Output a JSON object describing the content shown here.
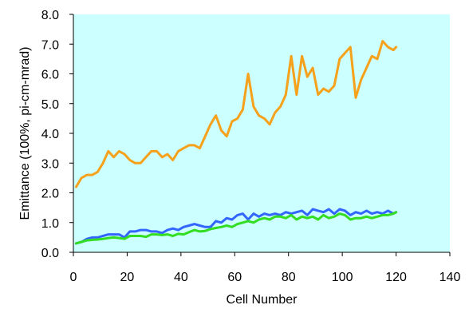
{
  "chart_data": {
    "type": "line",
    "title": "",
    "xlabel": "Cell Number",
    "ylabel": "Emittance (100%, pi-cm-mrad)",
    "xlim": [
      0,
      140
    ],
    "ylim": [
      0.0,
      8.0
    ],
    "xticks": [
      "0",
      "20",
      "40",
      "60",
      "80",
      "100",
      "120",
      "140"
    ],
    "yticks": [
      "0.0",
      "1.0",
      "2.0",
      "3.0",
      "4.0",
      "5.0",
      "6.0",
      "7.0",
      "8.0"
    ],
    "grid": false,
    "legend": "none",
    "plot_background": "#ccffff",
    "series": [
      {
        "color": "#f5a11c",
        "x": [
          1,
          3,
          5,
          7,
          9,
          11,
          13,
          15,
          17,
          19,
          21,
          23,
          25,
          27,
          29,
          31,
          33,
          35,
          37,
          39,
          41,
          43,
          45,
          47,
          49,
          51,
          53,
          55,
          57,
          59,
          61,
          63,
          65,
          67,
          69,
          71,
          73,
          75,
          77,
          79,
          81,
          83,
          85,
          87,
          89,
          91,
          93,
          95,
          97,
          99,
          101,
          103,
          105,
          107,
          109,
          111,
          113,
          115,
          117,
          119,
          120
        ],
        "values": [
          2.2,
          2.5,
          2.6,
          2.6,
          2.7,
          3.0,
          3.4,
          3.2,
          3.4,
          3.3,
          3.1,
          3.0,
          3.0,
          3.2,
          3.4,
          3.4,
          3.2,
          3.3,
          3.1,
          3.4,
          3.5,
          3.6,
          3.6,
          3.5,
          3.9,
          4.3,
          4.6,
          4.1,
          3.9,
          4.4,
          4.5,
          4.8,
          6.0,
          4.9,
          4.6,
          4.5,
          4.3,
          4.7,
          4.9,
          5.3,
          6.6,
          5.3,
          6.6,
          5.9,
          6.2,
          5.3,
          5.5,
          5.4,
          5.6,
          6.5,
          6.7,
          6.9,
          5.2,
          5.8,
          6.2,
          6.6,
          6.5,
          7.1,
          6.9,
          6.8,
          6.9
        ]
      },
      {
        "color": "#3366ff",
        "x": [
          1,
          3,
          5,
          7,
          9,
          11,
          13,
          15,
          17,
          19,
          21,
          23,
          25,
          27,
          29,
          31,
          33,
          35,
          37,
          39,
          41,
          43,
          45,
          47,
          49,
          51,
          53,
          55,
          57,
          59,
          61,
          63,
          65,
          67,
          69,
          71,
          73,
          75,
          77,
          79,
          81,
          83,
          85,
          87,
          89,
          91,
          93,
          95,
          97,
          99,
          101,
          103,
          105,
          107,
          109,
          111,
          113,
          115,
          117,
          119,
          120
        ],
        "values": [
          0.3,
          0.35,
          0.45,
          0.5,
          0.5,
          0.55,
          0.6,
          0.6,
          0.6,
          0.5,
          0.7,
          0.7,
          0.75,
          0.75,
          0.7,
          0.7,
          0.65,
          0.75,
          0.8,
          0.75,
          0.85,
          0.9,
          0.95,
          0.9,
          0.85,
          0.85,
          1.05,
          1.0,
          1.15,
          1.1,
          1.25,
          1.3,
          1.1,
          1.3,
          1.2,
          1.3,
          1.25,
          1.3,
          1.25,
          1.35,
          1.3,
          1.35,
          1.4,
          1.25,
          1.45,
          1.4,
          1.35,
          1.45,
          1.3,
          1.45,
          1.4,
          1.25,
          1.35,
          1.3,
          1.4,
          1.3,
          1.35,
          1.3,
          1.4,
          1.3,
          1.35
        ]
      },
      {
        "color": "#33dd22",
        "x": [
          1,
          3,
          5,
          7,
          9,
          11,
          13,
          15,
          17,
          19,
          21,
          23,
          25,
          27,
          29,
          31,
          33,
          35,
          37,
          39,
          41,
          43,
          45,
          47,
          49,
          51,
          53,
          55,
          57,
          59,
          61,
          63,
          65,
          67,
          69,
          71,
          73,
          75,
          77,
          79,
          81,
          83,
          85,
          87,
          89,
          91,
          93,
          95,
          97,
          99,
          101,
          103,
          105,
          107,
          109,
          111,
          113,
          115,
          117,
          119,
          120
        ],
        "values": [
          0.3,
          0.35,
          0.4,
          0.42,
          0.43,
          0.45,
          0.48,
          0.5,
          0.48,
          0.45,
          0.55,
          0.55,
          0.55,
          0.52,
          0.6,
          0.6,
          0.58,
          0.6,
          0.55,
          0.62,
          0.6,
          0.68,
          0.75,
          0.7,
          0.72,
          0.78,
          0.82,
          0.85,
          0.9,
          0.85,
          0.95,
          1.0,
          1.05,
          1.0,
          1.1,
          1.15,
          1.1,
          1.2,
          1.2,
          1.15,
          1.25,
          1.1,
          1.2,
          1.15,
          1.2,
          1.1,
          1.25,
          1.15,
          1.2,
          1.3,
          1.25,
          1.1,
          1.15,
          1.15,
          1.2,
          1.15,
          1.2,
          1.25,
          1.25,
          1.3,
          1.35
        ]
      }
    ]
  }
}
